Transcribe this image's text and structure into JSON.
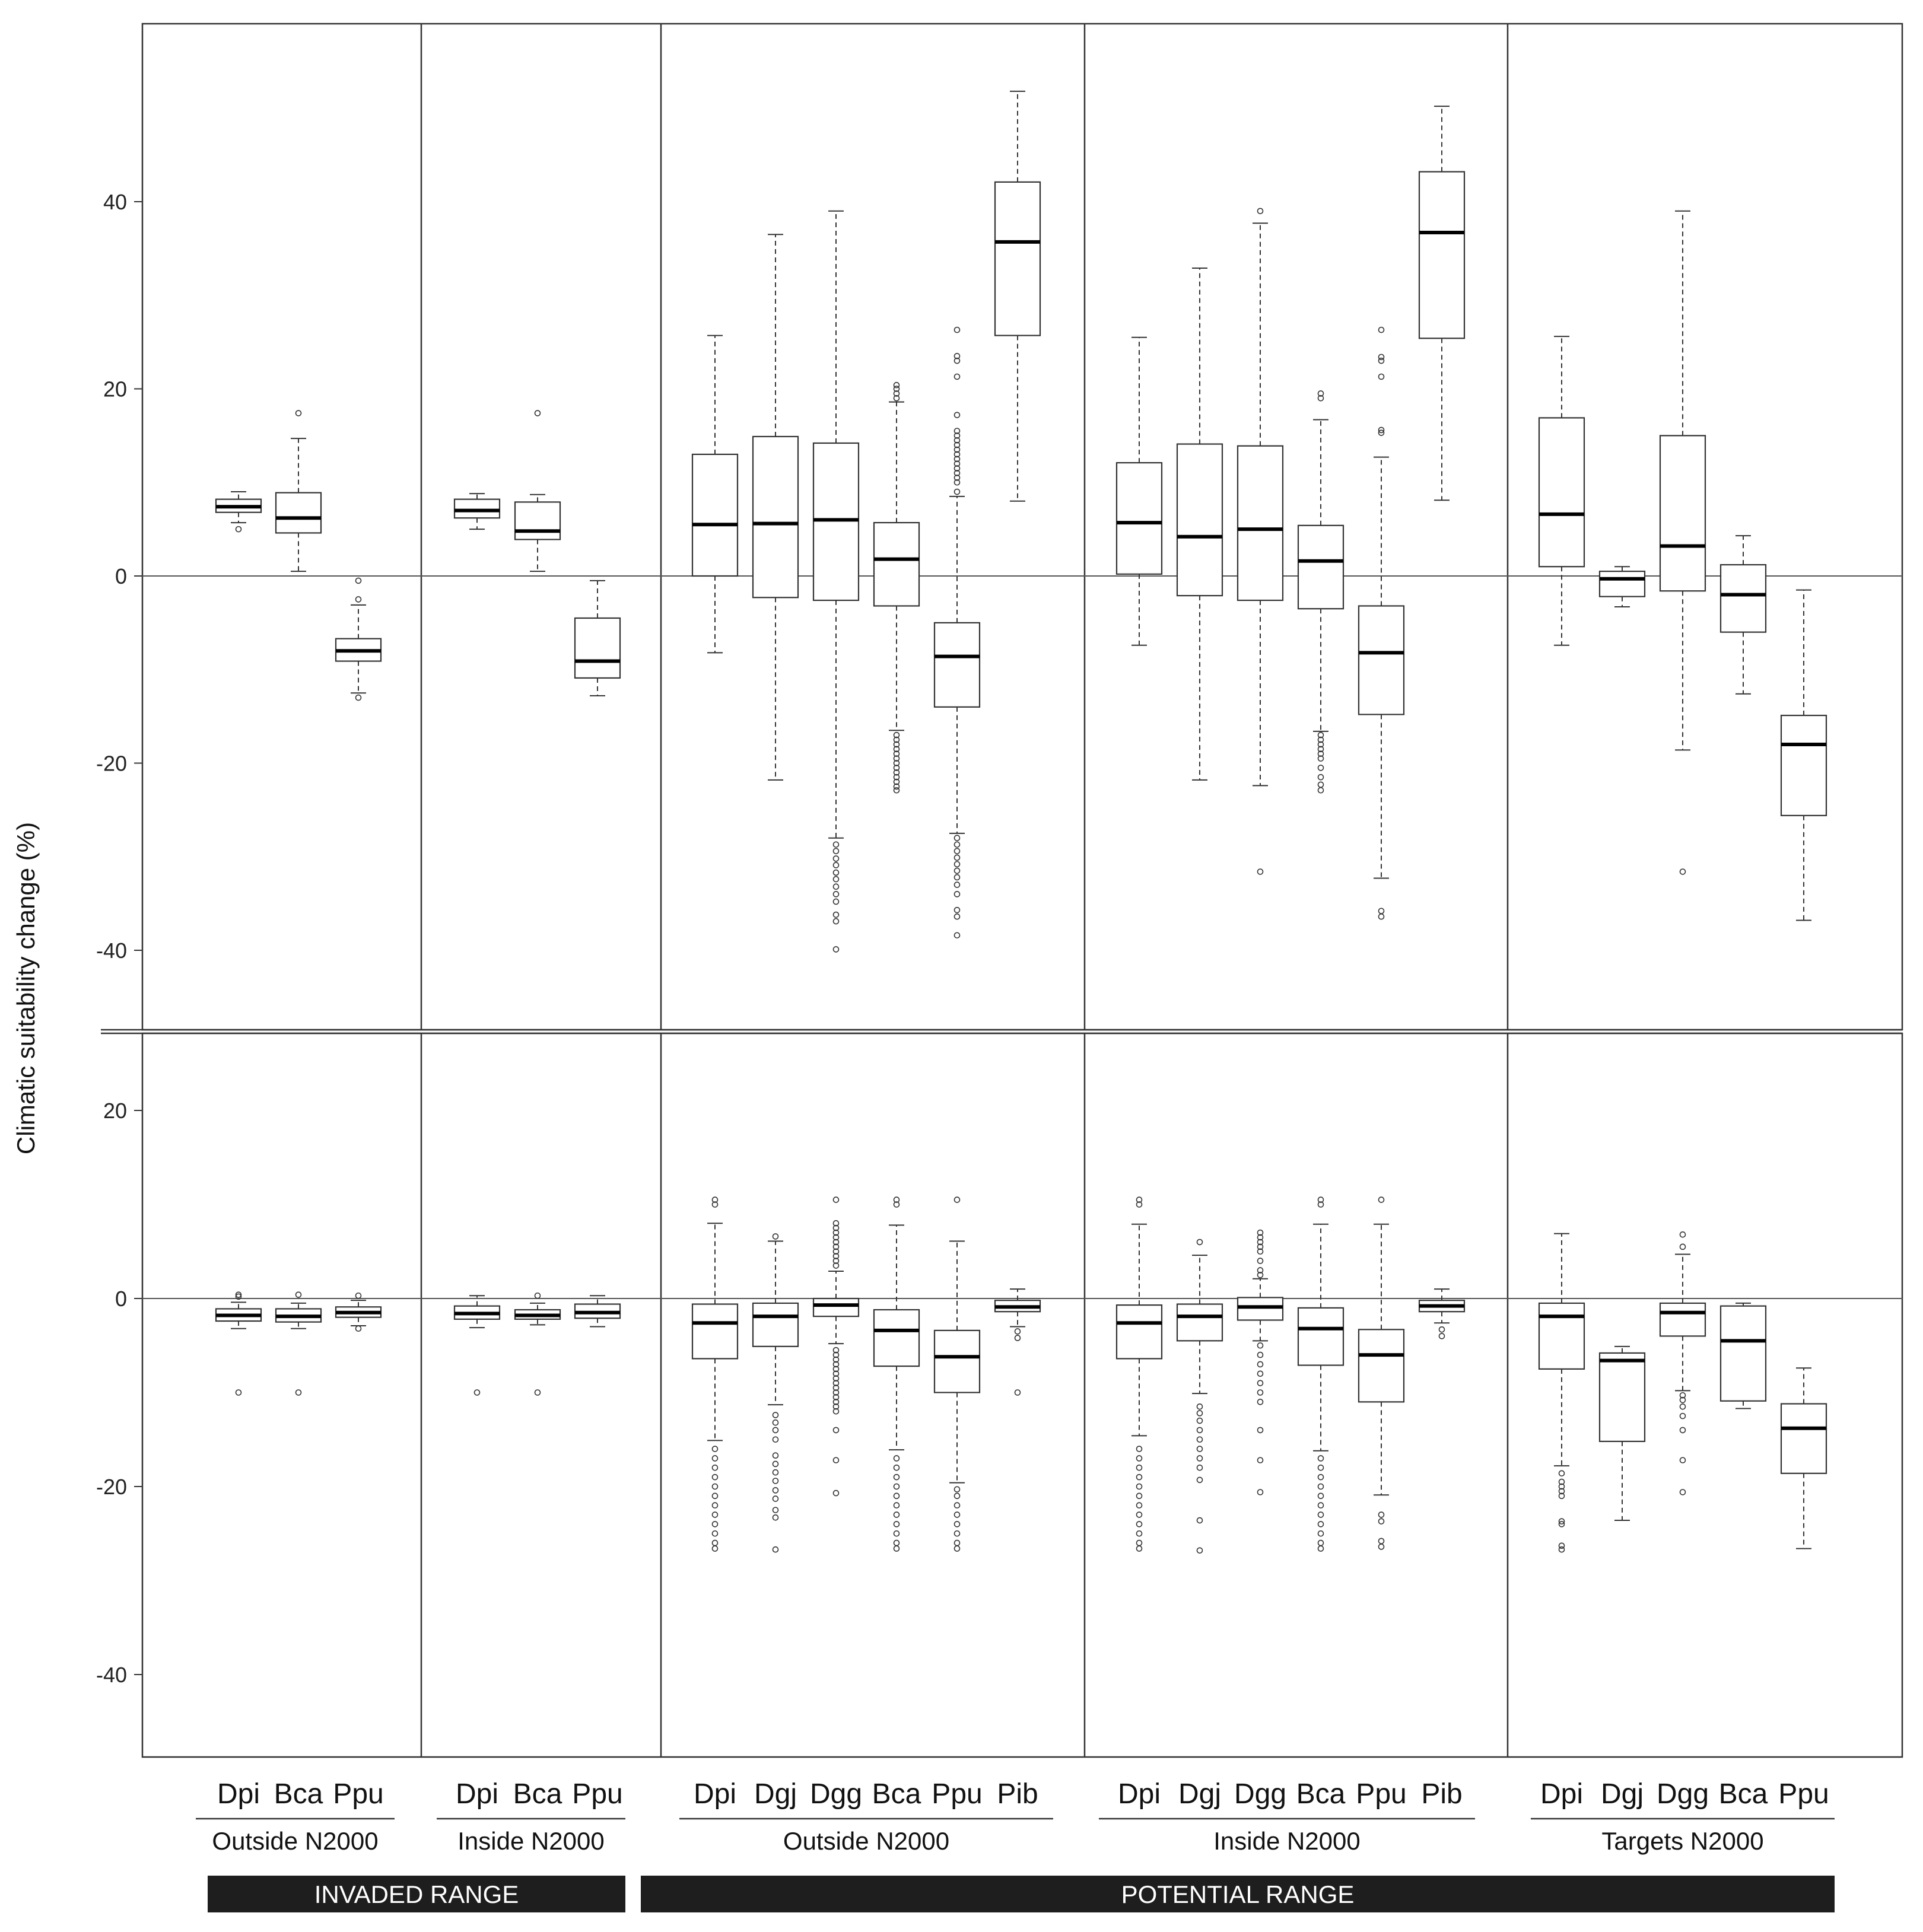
{
  "chart_data": {
    "type": "box",
    "ylabel": "Climatic suitability change (%)",
    "panels": [
      {
        "name": "top",
        "ylim": [
          -48,
          58
        ],
        "yticks": [
          -40,
          -20,
          0,
          20,
          40
        ],
        "reference_line": 0
      },
      {
        "name": "bottom",
        "ylim": [
          -49,
          28
        ],
        "yticks": [
          -40,
          -20,
          0,
          20
        ],
        "reference_line": 0
      }
    ],
    "groups": [
      {
        "label": "Outside N2000",
        "range": "INVADED RANGE",
        "categories": [
          "Dpi",
          "Bca",
          "Ppu"
        ]
      },
      {
        "label": "Inside N2000",
        "range": "INVADED RANGE",
        "categories": [
          "Dpi",
          "Bca",
          "Ppu"
        ]
      },
      {
        "label": "Outside N2000",
        "range": "POTENTIAL RANGE",
        "categories": [
          "Dpi",
          "Dgj",
          "Dgg",
          "Bca",
          "Ppu",
          "Pib"
        ]
      },
      {
        "label": "Inside N2000",
        "range": "POTENTIAL RANGE",
        "categories": [
          "Dpi",
          "Dgj",
          "Dgg",
          "Bca",
          "Ppu",
          "Pib"
        ]
      },
      {
        "label": "Targets N2000",
        "range": "POTENTIAL RANGE",
        "categories": [
          "Dpi",
          "Dgj",
          "Dgg",
          "Bca",
          "Ppu"
        ]
      }
    ],
    "ranges": [
      "INVADED RANGE",
      "POTENTIAL RANGE"
    ],
    "series": [
      {
        "panel": "top",
        "group": 0,
        "boxes": [
          {
            "cat": "Dpi",
            "min": 5.7,
            "q1": 6.8,
            "median": 7.4,
            "q3": 8.2,
            "max": 9,
            "outliers": [
              5
            ]
          },
          {
            "cat": "Bca",
            "min": 0.5,
            "q1": 4.6,
            "median": 6.2,
            "q3": 8.9,
            "max": 14.7,
            "outliers": [
              17.4
            ]
          },
          {
            "cat": "Ppu",
            "min": -12.5,
            "q1": -9.1,
            "median": -8,
            "q3": -6.7,
            "max": -3.1,
            "outliers": [
              -0.5,
              -2.5,
              -13
            ]
          }
        ]
      },
      {
        "panel": "top",
        "group": 1,
        "boxes": [
          {
            "cat": "Dpi",
            "min": 5,
            "q1": 6.2,
            "median": 7,
            "q3": 8.2,
            "max": 8.8,
            "outliers": []
          },
          {
            "cat": "Bca",
            "min": 0.5,
            "q1": 3.9,
            "median": 4.8,
            "q3": 7.9,
            "max": 8.7,
            "outliers": [
              17.4
            ]
          },
          {
            "cat": "Ppu",
            "min": -12.8,
            "q1": -10.9,
            "median": -9.1,
            "q3": -4.5,
            "max": -0.5,
            "outliers": []
          }
        ]
      },
      {
        "panel": "top",
        "group": 2,
        "boxes": [
          {
            "cat": "Dpi",
            "min": -8.2,
            "q1": 0,
            "median": 5.5,
            "q3": 13,
            "max": 25.7,
            "outliers": []
          },
          {
            "cat": "Dgj",
            "min": -21.8,
            "q1": -2.3,
            "median": 5.6,
            "q3": 14.9,
            "max": 36.5,
            "outliers": []
          },
          {
            "cat": "Dgg",
            "min": -28,
            "q1": -2.6,
            "median": 6,
            "q3": 14.2,
            "max": 39,
            "outliers": [
              -28.7,
              -29.4,
              -30.2,
              -30.9,
              -31.7,
              -32.4,
              -33.2,
              -34,
              -34.8,
              -36.2,
              -36.9,
              -39.9
            ]
          },
          {
            "cat": "Bca",
            "min": -16.5,
            "q1": -3.2,
            "median": 1.8,
            "q3": 5.7,
            "max": 18.6,
            "outliers": [
              19,
              19.5,
              20,
              20.4,
              -17,
              -17.5,
              -18,
              -18.5,
              -19,
              -19.5,
              -20,
              -20.5,
              -21,
              -21.5,
              -22,
              -22.5,
              -22.9
            ]
          },
          {
            "cat": "Ppu",
            "min": -27.5,
            "q1": -14,
            "median": -8.6,
            "q3": -5,
            "max": 8.5,
            "outliers": [
              9,
              10,
              10.5,
              11,
              11.5,
              12,
              12.5,
              13,
              13.5,
              14,
              14.5,
              15,
              15.5,
              17.2,
              21.3,
              23,
              23.5,
              26.3,
              -28,
              -28.7,
              -29.4,
              -30.1,
              -30.8,
              -31.5,
              -32.2,
              -33,
              -34,
              -35.7,
              -36.4,
              -38.4
            ]
          },
          {
            "cat": "Pib",
            "min": 8,
            "q1": 25.7,
            "median": 35.7,
            "q3": 42.1,
            "max": 51.8,
            "outliers": []
          }
        ]
      },
      {
        "panel": "top",
        "group": 3,
        "boxes": [
          {
            "cat": "Dpi",
            "min": -7.4,
            "q1": 0.2,
            "median": 5.7,
            "q3": 12.1,
            "max": 25.5,
            "outliers": []
          },
          {
            "cat": "Dgj",
            "min": -21.8,
            "q1": -2.1,
            "median": 4.2,
            "q3": 14.1,
            "max": 32.9,
            "outliers": []
          },
          {
            "cat": "Dgg",
            "min": -22.4,
            "q1": -2.6,
            "median": 5,
            "q3": 13.9,
            "max": 37.7,
            "outliers": [
              39,
              -31.6
            ]
          },
          {
            "cat": "Bca",
            "min": -16.6,
            "q1": -3.5,
            "median": 1.6,
            "q3": 5.4,
            "max": 16.7,
            "outliers": [
              19,
              19.5,
              -17,
              -17.5,
              -18,
              -18.5,
              -19,
              -19.5,
              -20.5,
              -21.5,
              -22.3,
              -22.9
            ]
          },
          {
            "cat": "Ppu",
            "min": -32.3,
            "q1": -14.8,
            "median": -8.2,
            "q3": -3.2,
            "max": 12.7,
            "outliers": [
              15.3,
              15.6,
              21.3,
              23,
              23.4,
              26.3,
              -35.8,
              -36.4
            ]
          },
          {
            "cat": "Pib",
            "min": 8.1,
            "q1": 25.4,
            "median": 36.7,
            "q3": 43.2,
            "max": 50.2,
            "outliers": []
          }
        ]
      },
      {
        "panel": "top",
        "group": 4,
        "boxes": [
          {
            "cat": "Dpi",
            "min": -7.4,
            "q1": 1,
            "median": 6.6,
            "q3": 16.9,
            "max": 25.6,
            "outliers": []
          },
          {
            "cat": "Dgj",
            "min": -3.3,
            "q1": -2.2,
            "median": -0.3,
            "q3": 0.5,
            "max": 1,
            "outliers": []
          },
          {
            "cat": "Dgg",
            "min": -18.6,
            "q1": -1.6,
            "median": 3.2,
            "q3": 15,
            "max": 39,
            "outliers": [
              -31.6
            ]
          },
          {
            "cat": "Bca",
            "min": -12.6,
            "q1": -6,
            "median": -2,
            "q3": 1.2,
            "max": 4.3,
            "outliers": []
          },
          {
            "cat": "Ppu",
            "min": -36.8,
            "q1": -25.6,
            "median": -18,
            "q3": -14.9,
            "max": -1.5,
            "outliers": []
          }
        ]
      },
      {
        "panel": "bottom",
        "group": 0,
        "boxes": [
          {
            "cat": "Dpi",
            "min": -3.2,
            "q1": -2.4,
            "median": -1.8,
            "q3": -1.1,
            "max": -0.4,
            "outliers": [
              0.2,
              0.4,
              -10
            ]
          },
          {
            "cat": "Bca",
            "min": -3.2,
            "q1": -2.5,
            "median": -1.9,
            "q3": -1.1,
            "max": -0.5,
            "outliers": [
              0.4,
              -10
            ]
          },
          {
            "cat": "Ppu",
            "min": -2.9,
            "q1": -2,
            "median": -1.5,
            "q3": -0.9,
            "max": -0.2,
            "outliers": [
              0.3,
              -3.2
            ]
          }
        ]
      },
      {
        "panel": "bottom",
        "group": 1,
        "boxes": [
          {
            "cat": "Dpi",
            "min": -3.1,
            "q1": -2.2,
            "median": -1.6,
            "q3": -0.8,
            "max": 0.3,
            "outliers": [
              -10
            ]
          },
          {
            "cat": "Bca",
            "min": -2.8,
            "q1": -2.2,
            "median": -1.8,
            "q3": -1.2,
            "max": -0.5,
            "outliers": [
              0.3,
              -10
            ]
          },
          {
            "cat": "Ppu",
            "min": -3,
            "q1": -2.1,
            "median": -1.5,
            "q3": -0.6,
            "max": 0.3,
            "outliers": []
          }
        ]
      },
      {
        "panel": "bottom",
        "group": 2,
        "boxes": [
          {
            "cat": "Dpi",
            "min": -15.1,
            "q1": -6.4,
            "median": -2.6,
            "q3": -0.6,
            "max": 8,
            "outliers": [
              10,
              10.5,
              -16,
              -17,
              -18,
              -19,
              -20,
              -21,
              -22,
              -23,
              -24,
              -25,
              -26,
              -26.6
            ]
          },
          {
            "cat": "Dgj",
            "min": -11.3,
            "q1": -5.1,
            "median": -1.9,
            "q3": -0.5,
            "max": 6.1,
            "outliers": [
              6.6,
              -12.4,
              -13.2,
              -14,
              -15,
              -16.7,
              -17.6,
              -18.5,
              -19.4,
              -20.4,
              -21.3,
              -22.5,
              -23.3,
              -26.7
            ]
          },
          {
            "cat": "Dgg",
            "min": -4.8,
            "q1": -1.9,
            "median": -0.7,
            "q3": 0,
            "max": 2.9,
            "outliers": [
              3.5,
              4,
              4.5,
              5,
              5.5,
              6,
              6.5,
              7,
              7.5,
              8,
              10.5,
              -5.5,
              -6,
              -6.5,
              -7,
              -7.5,
              -8,
              -8.5,
              -9,
              -9.5,
              -10,
              -10.5,
              -11,
              -11.5,
              -12,
              -14,
              -17.2,
              -20.7
            ]
          },
          {
            "cat": "Bca",
            "min": -16.1,
            "q1": -7.2,
            "median": -3.4,
            "q3": -1.2,
            "max": 7.8,
            "outliers": [
              10,
              10.5,
              -17,
              -18,
              -19,
              -20,
              -21,
              -22,
              -23,
              -24,
              -25,
              -26,
              -26.6
            ]
          },
          {
            "cat": "Ppu",
            "min": -19.6,
            "q1": -10,
            "median": -6.2,
            "q3": -3.4,
            "max": 6.1,
            "outliers": [
              10.5,
              -20.3,
              -21,
              -22,
              -23,
              -24,
              -25,
              -26,
              -26.6
            ]
          },
          {
            "cat": "Pib",
            "min": -3,
            "q1": -1.4,
            "median": -0.9,
            "q3": -0.2,
            "max": 1,
            "outliers": [
              -3.5,
              -4.2,
              -10
            ]
          }
        ]
      },
      {
        "panel": "bottom",
        "group": 3,
        "boxes": [
          {
            "cat": "Dpi",
            "min": -14.6,
            "q1": -6.4,
            "median": -2.6,
            "q3": -0.7,
            "max": 7.9,
            "outliers": [
              10,
              10.5,
              -16,
              -17,
              -18,
              -19,
              -20,
              -21,
              -22,
              -23,
              -24,
              -25,
              -26,
              -26.6
            ]
          },
          {
            "cat": "Dgj",
            "min": -10.1,
            "q1": -4.5,
            "median": -1.9,
            "q3": -0.6,
            "max": 4.6,
            "outliers": [
              6,
              -11.5,
              -12.2,
              -13,
              -14,
              -15,
              -16,
              -17,
              -18,
              -19.3,
              -23.6,
              -26.8
            ]
          },
          {
            "cat": "Dgg",
            "min": -4.5,
            "q1": -2.3,
            "median": -0.9,
            "q3": 0.1,
            "max": 2.1,
            "outliers": [
              2.5,
              3,
              4,
              5,
              5.5,
              6,
              6.5,
              7,
              -5,
              -6,
              -7,
              -8,
              -9,
              -10,
              -11,
              -14,
              -17.2,
              -20.6
            ]
          },
          {
            "cat": "Bca",
            "min": -16.2,
            "q1": -7.1,
            "median": -3.2,
            "q3": -1,
            "max": 7.9,
            "outliers": [
              10,
              10.5,
              -17,
              -18,
              -19,
              -20,
              -21,
              -22,
              -23,
              -24,
              -25,
              -26,
              -26.6
            ]
          },
          {
            "cat": "Ppu",
            "min": -20.9,
            "q1": -11,
            "median": -6,
            "q3": -3.3,
            "max": 7.9,
            "outliers": [
              10.5,
              -23,
              -23.7,
              -25.8,
              -26.4
            ]
          },
          {
            "cat": "Pib",
            "min": -2.6,
            "q1": -1.4,
            "median": -0.8,
            "q3": -0.2,
            "max": 1,
            "outliers": [
              -3.3,
              -4
            ]
          }
        ]
      },
      {
        "panel": "bottom",
        "group": 4,
        "boxes": [
          {
            "cat": "Dpi",
            "min": -17.8,
            "q1": -7.5,
            "median": -1.9,
            "q3": -0.5,
            "max": 6.9,
            "outliers": [
              -18.6,
              -19.5,
              -20,
              -20.5,
              -21,
              -23.7,
              -24,
              -26.3,
              -26.7
            ]
          },
          {
            "cat": "Dgj",
            "min": -23.6,
            "q1": -15.2,
            "median": -6.6,
            "q3": -5.8,
            "max": -5.1,
            "outliers": []
          },
          {
            "cat": "Dgg",
            "min": -9.8,
            "q1": -4,
            "median": -1.5,
            "q3": -0.5,
            "max": 4.7,
            "outliers": [
              5.5,
              6.8,
              -10.3,
              -10.8,
              -11.5,
              -12.5,
              -14,
              -17.2,
              -20.6
            ]
          },
          {
            "cat": "Bca",
            "min": -11.7,
            "q1": -10.9,
            "median": -4.5,
            "q3": -0.8,
            "max": -0.5,
            "outliers": []
          },
          {
            "cat": "Ppu",
            "min": -26.6,
            "q1": -18.6,
            "median": -13.8,
            "q3": -11.2,
            "max": -7.4,
            "outliers": []
          }
        ]
      }
    ]
  }
}
